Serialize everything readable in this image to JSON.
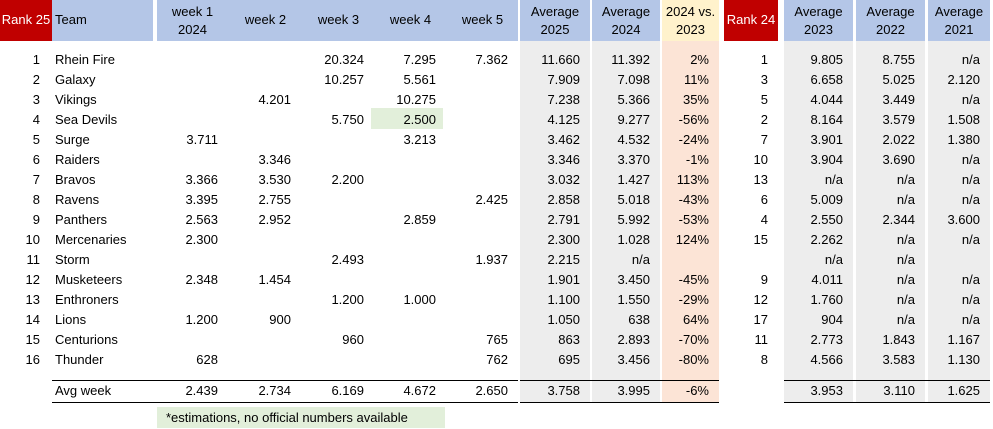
{
  "header": {
    "rank25": "Rank 25",
    "team": "Team",
    "week1": [
      "week 1",
      "2024"
    ],
    "week2": "week 2",
    "week3": "week 3",
    "week4": "week 4",
    "week5": "week 5",
    "avg2025": [
      "Average",
      "2025"
    ],
    "avg2024": [
      "Average",
      "2024"
    ],
    "vs": [
      "2024 vs.",
      "2023"
    ],
    "rank24": "Rank 24",
    "avg2023": [
      "Average",
      "2023"
    ],
    "avg2022": [
      "Average",
      "2022"
    ],
    "avg2021": [
      "Average",
      "2021"
    ]
  },
  "colors": {
    "rank_red": "#c00000",
    "header_blue": "#b4c6e7",
    "avg_grey": "#ededed",
    "vs_orange": "#fce4d6",
    "vs_header_yellow": "#fff2cc",
    "estimate_green": "#e2efda"
  },
  "rows": [
    {
      "rank": "1",
      "team": "Rhein Fire",
      "w1": "",
      "w2": "",
      "w3": "20.324",
      "w4": "7.295",
      "w5": "7.362",
      "a25": "11.660",
      "a24": "11.392",
      "vs": "2%",
      "r24": "1",
      "a23": "9.805",
      "a22": "8.755",
      "a21": "n/a"
    },
    {
      "rank": "2",
      "team": "Galaxy",
      "w1": "",
      "w2": "",
      "w3": "10.257",
      "w4": "5.561",
      "w5": "",
      "a25": "7.909",
      "a24": "7.098",
      "vs": "11%",
      "r24": "3",
      "a23": "6.658",
      "a22": "5.025",
      "a21": "2.120"
    },
    {
      "rank": "3",
      "team": "Vikings",
      "w1": "",
      "w2": "4.201",
      "w3": "",
      "w4": "10.275",
      "w5": "",
      "a25": "7.238",
      "a24": "5.366",
      "vs": "35%",
      "r24": "5",
      "a23": "4.044",
      "a22": "3.449",
      "a21": "n/a"
    },
    {
      "rank": "4",
      "team": "Sea Devils",
      "w1": "",
      "w2": "",
      "w3": "5.750",
      "w4": "2.500",
      "w5": "",
      "a25": "4.125",
      "a24": "9.277",
      "vs": "-56%",
      "r24": "2",
      "a23": "8.164",
      "a22": "3.579",
      "a21": "1.508"
    },
    {
      "rank": "5",
      "team": "Surge",
      "w1": "3.711",
      "w2": "",
      "w3": "",
      "w4": "3.213",
      "w5": "",
      "a25": "3.462",
      "a24": "4.532",
      "vs": "-24%",
      "r24": "7",
      "a23": "3.901",
      "a22": "2.022",
      "a21": "1.380"
    },
    {
      "rank": "6",
      "team": "Raiders",
      "w1": "",
      "w2": "3.346",
      "w3": "",
      "w4": "",
      "w5": "",
      "a25": "3.346",
      "a24": "3.370",
      "vs": "-1%",
      "r24": "10",
      "a23": "3.904",
      "a22": "3.690",
      "a21": "n/a"
    },
    {
      "rank": "7",
      "team": "Bravos",
      "w1": "3.366",
      "w2": "3.530",
      "w3": "2.200",
      "w4": "",
      "w5": "",
      "a25": "3.032",
      "a24": "1.427",
      "vs": "113%",
      "r24": "13",
      "a23": "n/a",
      "a22": "n/a",
      "a21": "n/a"
    },
    {
      "rank": "8",
      "team": "Ravens",
      "w1": "3.395",
      "w2": "2.755",
      "w3": "",
      "w4": "",
      "w5": "2.425",
      "a25": "2.858",
      "a24": "5.018",
      "vs": "-43%",
      "r24": "6",
      "a23": "5.009",
      "a22": "n/a",
      "a21": "n/a"
    },
    {
      "rank": "9",
      "team": "Panthers",
      "w1": "2.563",
      "w2": "2.952",
      "w3": "",
      "w4": "2.859",
      "w5": "",
      "a25": "2.791",
      "a24": "5.992",
      "vs": "-53%",
      "r24": "4",
      "a23": "2.550",
      "a22": "2.344",
      "a21": "3.600"
    },
    {
      "rank": "10",
      "team": "Mercenaries",
      "w1": "2.300",
      "w2": "",
      "w3": "",
      "w4": "",
      "w5": "",
      "a25": "2.300",
      "a24": "1.028",
      "vs": "124%",
      "r24": "15",
      "a23": "2.262",
      "a22": "n/a",
      "a21": "n/a"
    },
    {
      "rank": "11",
      "team": "Storm",
      "w1": "",
      "w2": "",
      "w3": "2.493",
      "w4": "",
      "w5": "1.937",
      "a25": "2.215",
      "a24": "n/a",
      "vs": "",
      "r24": "",
      "a23": "n/a",
      "a22": "n/a",
      "a21": ""
    },
    {
      "rank": "12",
      "team": "Musketeers",
      "w1": "2.348",
      "w2": "1.454",
      "w3": "",
      "w4": "",
      "w5": "",
      "a25": "1.901",
      "a24": "3.450",
      "vs": "-45%",
      "r24": "9",
      "a23": "4.011",
      "a22": "n/a",
      "a21": "n/a"
    },
    {
      "rank": "13",
      "team": "Enthroners",
      "w1": "",
      "w2": "",
      "w3": "1.200",
      "w4": "1.000",
      "w5": "",
      "a25": "1.100",
      "a24": "1.550",
      "vs": "-29%",
      "r24": "12",
      "a23": "1.760",
      "a22": "n/a",
      "a21": "n/a"
    },
    {
      "rank": "14",
      "team": "Lions",
      "w1": "1.200",
      "w2": "900",
      "w3": "",
      "w4": "",
      "w5": "",
      "a25": "1.050",
      "a24": "638",
      "vs": "64%",
      "r24": "17",
      "a23": "904",
      "a22": "n/a",
      "a21": "n/a"
    },
    {
      "rank": "15",
      "team": "Centurions",
      "w1": "",
      "w2": "",
      "w3": "960",
      "w4": "",
      "w5": "765",
      "a25": "863",
      "a24": "2.893",
      "vs": "-70%",
      "r24": "11",
      "a23": "2.773",
      "a22": "1.843",
      "a21": "1.167"
    },
    {
      "rank": "16",
      "team": "Thunder",
      "w1": "628",
      "w2": "",
      "w3": "",
      "w4": "",
      "w5": "762",
      "a25": "695",
      "a24": "3.456",
      "vs": "-80%",
      "r24": "8",
      "a23": "4.566",
      "a22": "3.583",
      "a21": "1.130"
    }
  ],
  "avg": {
    "label": "Avg week",
    "w1": "2.439",
    "w2": "2.734",
    "w3": "6.169",
    "w4": "4.672",
    "w5": "2.650",
    "a25": "3.758",
    "a24": "3.995",
    "vs": "-6%",
    "a23": "3.953",
    "a22": "3.110",
    "a21": "1.625"
  },
  "note": "*estimations, no official numbers available"
}
